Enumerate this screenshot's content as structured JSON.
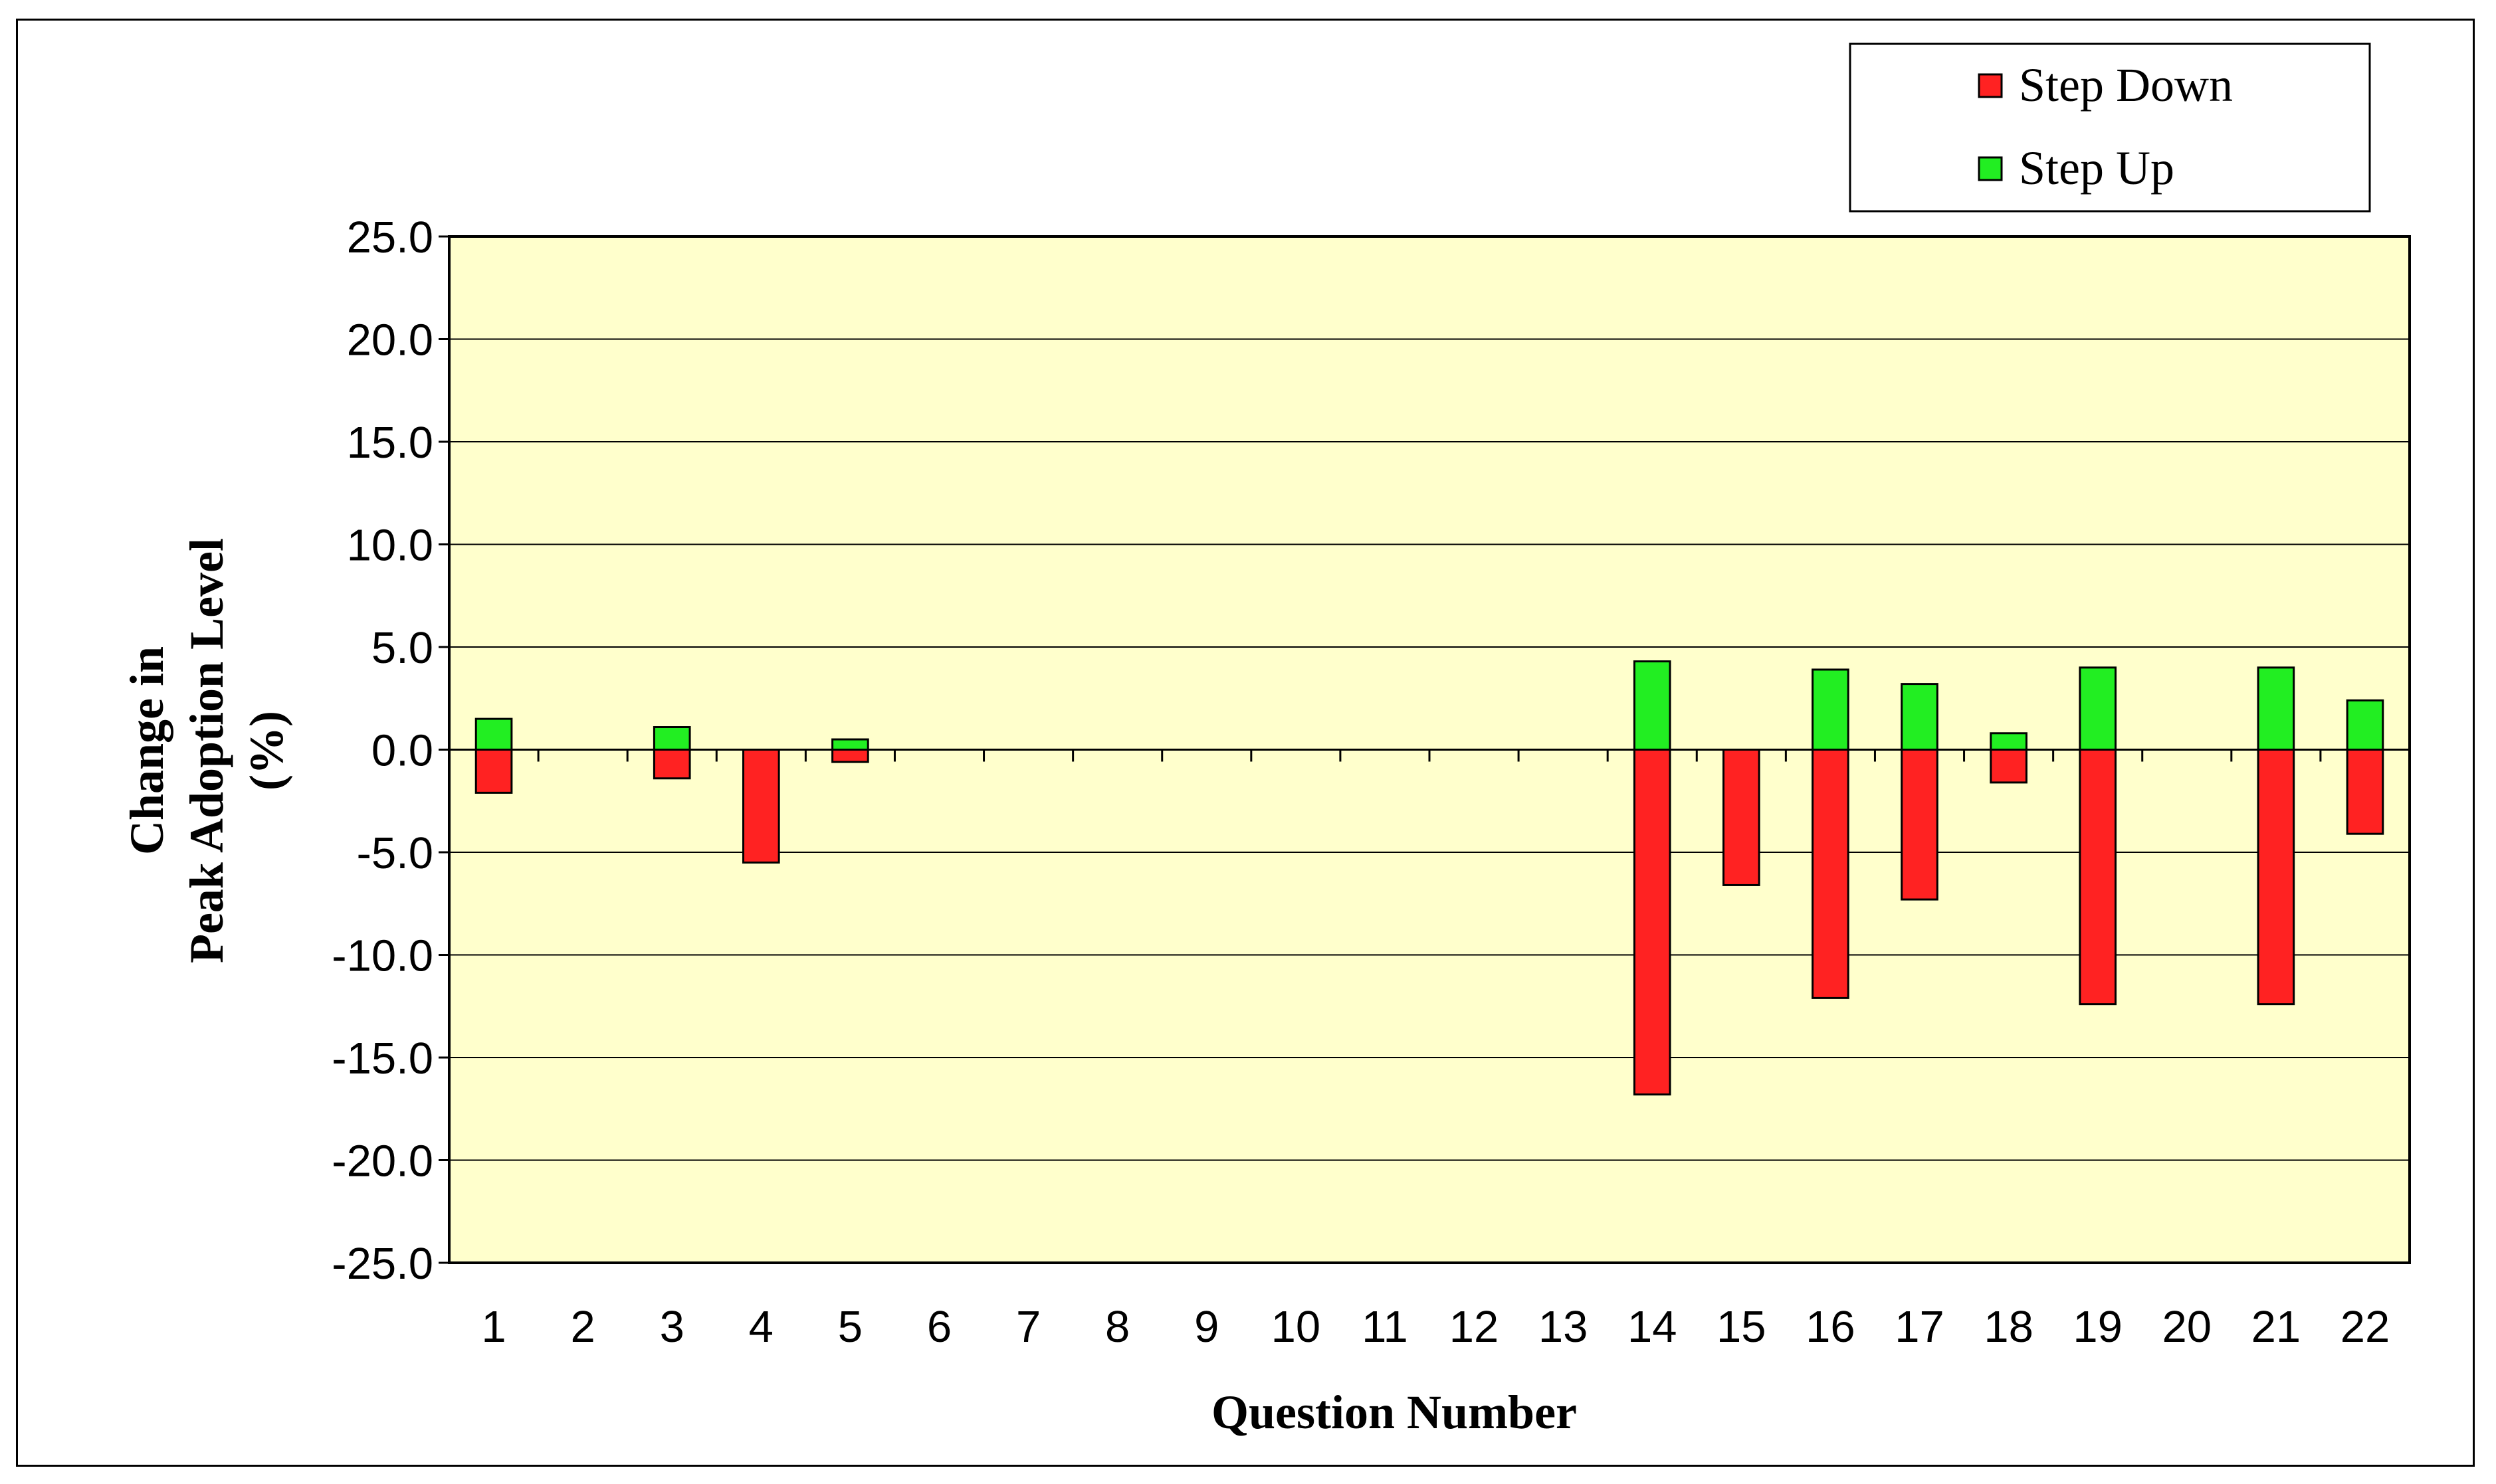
{
  "chart_data": {
    "type": "bar",
    "title": "",
    "xlabel": "Question Number",
    "ylabel_lines": [
      "Change in",
      "Peak Adoption Level",
      "(%)"
    ],
    "categories": [
      "1",
      "2",
      "3",
      "4",
      "5",
      "6",
      "7",
      "8",
      "9",
      "10",
      "11",
      "12",
      "13",
      "14",
      "15",
      "16",
      "17",
      "18",
      "19",
      "20",
      "21",
      "22"
    ],
    "ylim": [
      -25,
      25
    ],
    "ytick_step": 5,
    "yticks": [
      "25.0",
      "20.0",
      "15.0",
      "10.0",
      "5.0",
      "0.0",
      "-5.0",
      "-10.0",
      "-15.0",
      "-20.0",
      "-25.0"
    ],
    "grid": true,
    "legend_position": "top-right",
    "plot_background": "#ffffcc",
    "series": [
      {
        "name": "Step Down",
        "color": "#ff2222",
        "values": [
          -2.1,
          0,
          -1.4,
          -5.5,
          -0.6,
          0,
          0,
          0,
          0,
          0,
          0,
          0,
          0,
          -16.8,
          -6.6,
          -12.1,
          -7.3,
          -1.6,
          -12.4,
          0,
          -12.4,
          -4.1
        ]
      },
      {
        "name": "Step Up",
        "color": "#22ee22",
        "values": [
          1.5,
          0,
          1.1,
          0,
          0.5,
          0,
          0,
          0,
          0,
          0,
          0,
          0,
          0,
          4.3,
          0,
          3.9,
          3.2,
          0.8,
          4.0,
          0,
          4.0,
          2.4
        ]
      }
    ]
  }
}
